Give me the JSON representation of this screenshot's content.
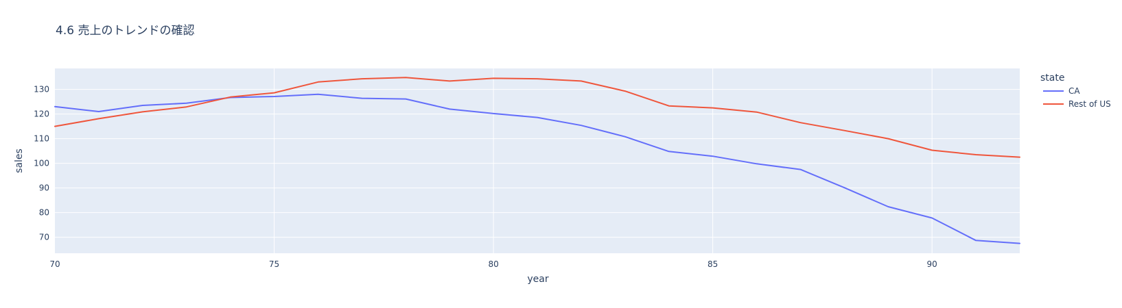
{
  "chart_data": {
    "type": "line",
    "title": "4.6 売上のトレンドの確認",
    "xlabel": "year",
    "ylabel": "sales",
    "x": [
      70,
      71,
      72,
      73,
      74,
      75,
      76,
      77,
      78,
      79,
      80,
      81,
      82,
      83,
      84,
      85,
      86,
      87,
      88,
      89,
      90,
      91,
      92
    ],
    "xlim": [
      70,
      92
    ],
    "ylim": [
      63.5,
      138.5
    ],
    "xticks": [
      "70",
      "75",
      "80",
      "85",
      "90"
    ],
    "yticks": [
      "70",
      "80",
      "90",
      "100",
      "110",
      "120",
      "130"
    ],
    "grid": true,
    "legend": {
      "title": "state",
      "placement": "right"
    },
    "plot_bgcolor": "#E5ECF6",
    "series": [
      {
        "name": "CA",
        "color": "#636EFA",
        "values": [
          123.0,
          121.0,
          123.5,
          124.4,
          126.7,
          127.1,
          128.0,
          126.4,
          126.1,
          122.0,
          120.2,
          118.6,
          115.4,
          110.8,
          104.8,
          102.9,
          99.8,
          97.5,
          90.1,
          82.4,
          77.8,
          68.7,
          67.5
        ]
      },
      {
        "name": "Rest of US",
        "color": "#EF553B",
        "values": [
          115.0,
          118.1,
          120.9,
          122.9,
          126.9,
          128.6,
          133.0,
          134.3,
          134.8,
          133.4,
          134.5,
          134.3,
          133.4,
          129.3,
          123.3,
          122.5,
          120.8,
          116.5,
          113.3,
          110.0,
          105.3,
          103.5,
          102.5
        ]
      }
    ]
  }
}
